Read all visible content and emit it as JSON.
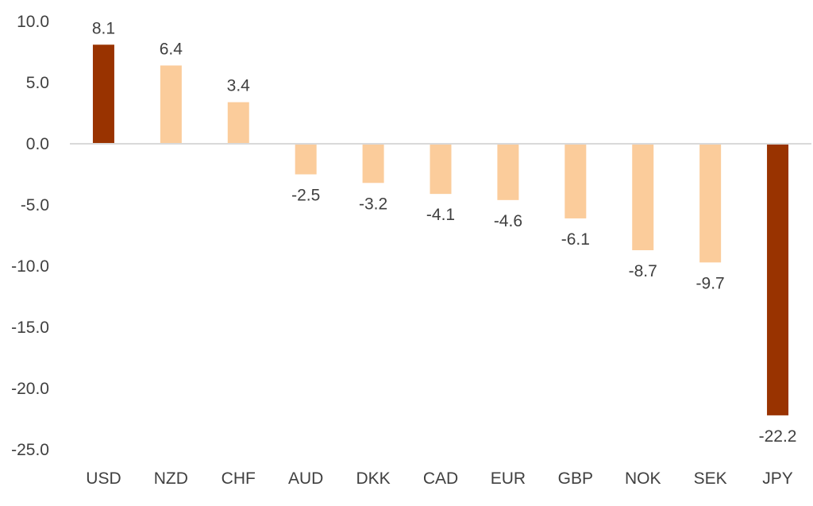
{
  "chart_data": {
    "type": "bar",
    "title": "",
    "xlabel": "",
    "ylabel": "",
    "ylim": [
      -25,
      10
    ],
    "y_ticks": [
      10,
      5,
      0,
      -5,
      -10,
      -15,
      -20,
      -25
    ],
    "y_tick_labels": [
      "10.0",
      "5.0",
      "0.0",
      "-5.0",
      "-10.0",
      "-15.0",
      "-20.0",
      "-25.0"
    ],
    "categories": [
      "USD",
      "NZD",
      "CHF",
      "AUD",
      "DKK",
      "CAD",
      "EUR",
      "GBP",
      "NOK",
      "SEK",
      "JPY"
    ],
    "values": [
      8.1,
      6.4,
      3.4,
      -2.5,
      -3.2,
      -4.1,
      -4.6,
      -6.1,
      -8.7,
      -9.7,
      -22.2
    ],
    "data_labels": [
      "8.1",
      "6.4",
      "3.4",
      "-2.5",
      "-3.2",
      "-4.1",
      "-4.6",
      "-6.1",
      "-8.7",
      "-9.7",
      "-22.2"
    ],
    "highlighted": [
      "USD",
      "JPY"
    ],
    "grid": false,
    "legend": "none",
    "colors": {
      "highlight": "#993300",
      "default": "#FBCC9B",
      "axis": "#D9D9D9",
      "text": "#404040"
    }
  }
}
